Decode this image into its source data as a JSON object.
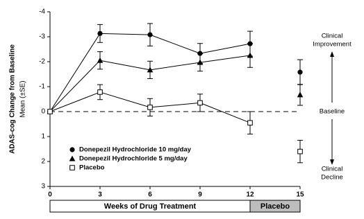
{
  "chart_data": {
    "type": "line",
    "y_label": "ADAS-cog  Change from Baseline",
    "y_sublabel": "Mean (±SE)",
    "x": [
      0,
      3,
      6,
      9,
      12,
      15
    ],
    "xlim": [
      0,
      15
    ],
    "xticks": [
      0,
      3,
      6,
      9,
      12,
      15
    ],
    "ylim": [
      3,
      -4
    ],
    "yticks": [
      -4,
      -3,
      -2,
      -1,
      0,
      1,
      2,
      3
    ],
    "reference_line": 0,
    "phases": [
      {
        "label": "Weeks of Drug Treatment",
        "range": [
          0,
          12
        ],
        "color": "#ffffff",
        "connected": true
      },
      {
        "label": "Placebo",
        "range": [
          12,
          15
        ],
        "color": "#bdbdbd",
        "connected": false
      }
    ],
    "series": [
      {
        "name": "Donepezil Hydrochloride 10 mg/day",
        "color": "#000000",
        "marker": "circle",
        "values": [
          0,
          -3.13,
          -3.08,
          -2.33,
          -2.72,
          -1.58
        ],
        "errors": [
          0,
          0.36,
          0.45,
          0.4,
          0.5,
          0.5
        ]
      },
      {
        "name": "Donepezil Hydrochloride 5 mg/day",
        "color": "#000000",
        "marker": "triangle",
        "values": [
          0,
          -2.05,
          -1.67,
          -1.97,
          -2.25,
          -0.67
        ],
        "errors": [
          0,
          0.35,
          0.35,
          0.35,
          0.48,
          0.42
        ]
      },
      {
        "name": "Placebo",
        "color": "#000000",
        "marker": "square",
        "values": [
          0,
          -0.78,
          -0.17,
          -0.35,
          0.45,
          1.6
        ],
        "errors": [
          0,
          0.3,
          0.35,
          0.35,
          0.45,
          0.45
        ]
      }
    ],
    "annotations": {
      "top": [
        "Clinical",
        "Improvement"
      ],
      "middle": "Baseline",
      "bottom": [
        "Clinical",
        "Decline"
      ]
    }
  }
}
